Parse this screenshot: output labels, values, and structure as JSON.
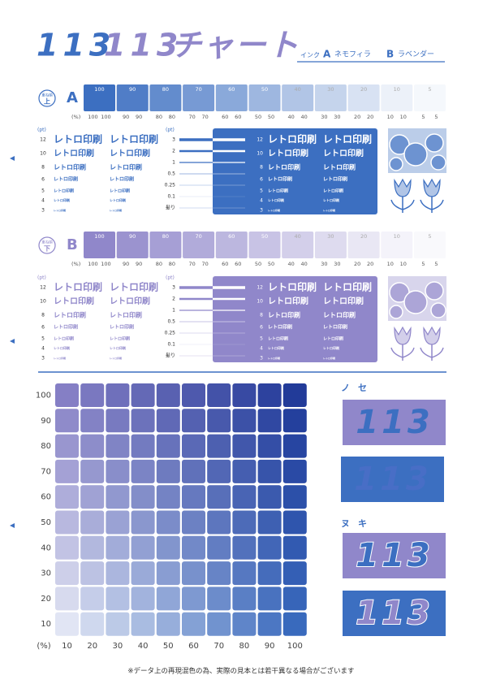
{
  "header": {
    "title_parts": [
      "113",
      "113",
      "チャート"
    ],
    "ink_label": "インク",
    "inks": [
      {
        "letter": "A",
        "name": "ネモフィラ",
        "color": "#3c6fc1"
      },
      {
        "letter": "B",
        "name": "ラベンダー",
        "color": "#9087ca"
      }
    ]
  },
  "sections": [
    {
      "order_label": "重ね順",
      "order": "上",
      "letter": "A"
    },
    {
      "order_label": "重ね順",
      "order": "下",
      "letter": "B"
    }
  ],
  "swatches": {
    "unit": "(%)",
    "values": [
      100,
      90,
      80,
      70,
      60,
      50,
      40,
      30,
      20,
      10,
      5
    ]
  },
  "type_sample": {
    "unit": "(pt)",
    "sizes": [
      12,
      10,
      8,
      6,
      5,
      4,
      3
    ],
    "text": "レトロ印刷",
    "line_unit": "(pt)",
    "line_widths": [
      3,
      2,
      1,
      0.5,
      0.25,
      0.1
    ],
    "hairline": "髪り"
  },
  "grid": {
    "unit": "(%)",
    "x": [
      10,
      20,
      30,
      40,
      50,
      60,
      70,
      80,
      90,
      100
    ],
    "y": [
      100,
      90,
      80,
      70,
      60,
      50,
      40,
      30,
      20,
      10
    ]
  },
  "samples": {
    "text": "113",
    "overprint_label": "ノセ",
    "knockout_label": "ヌキ"
  },
  "footer": "※データ上の再現混色の為、実際の見本とは若干異なる場合がございます"
}
